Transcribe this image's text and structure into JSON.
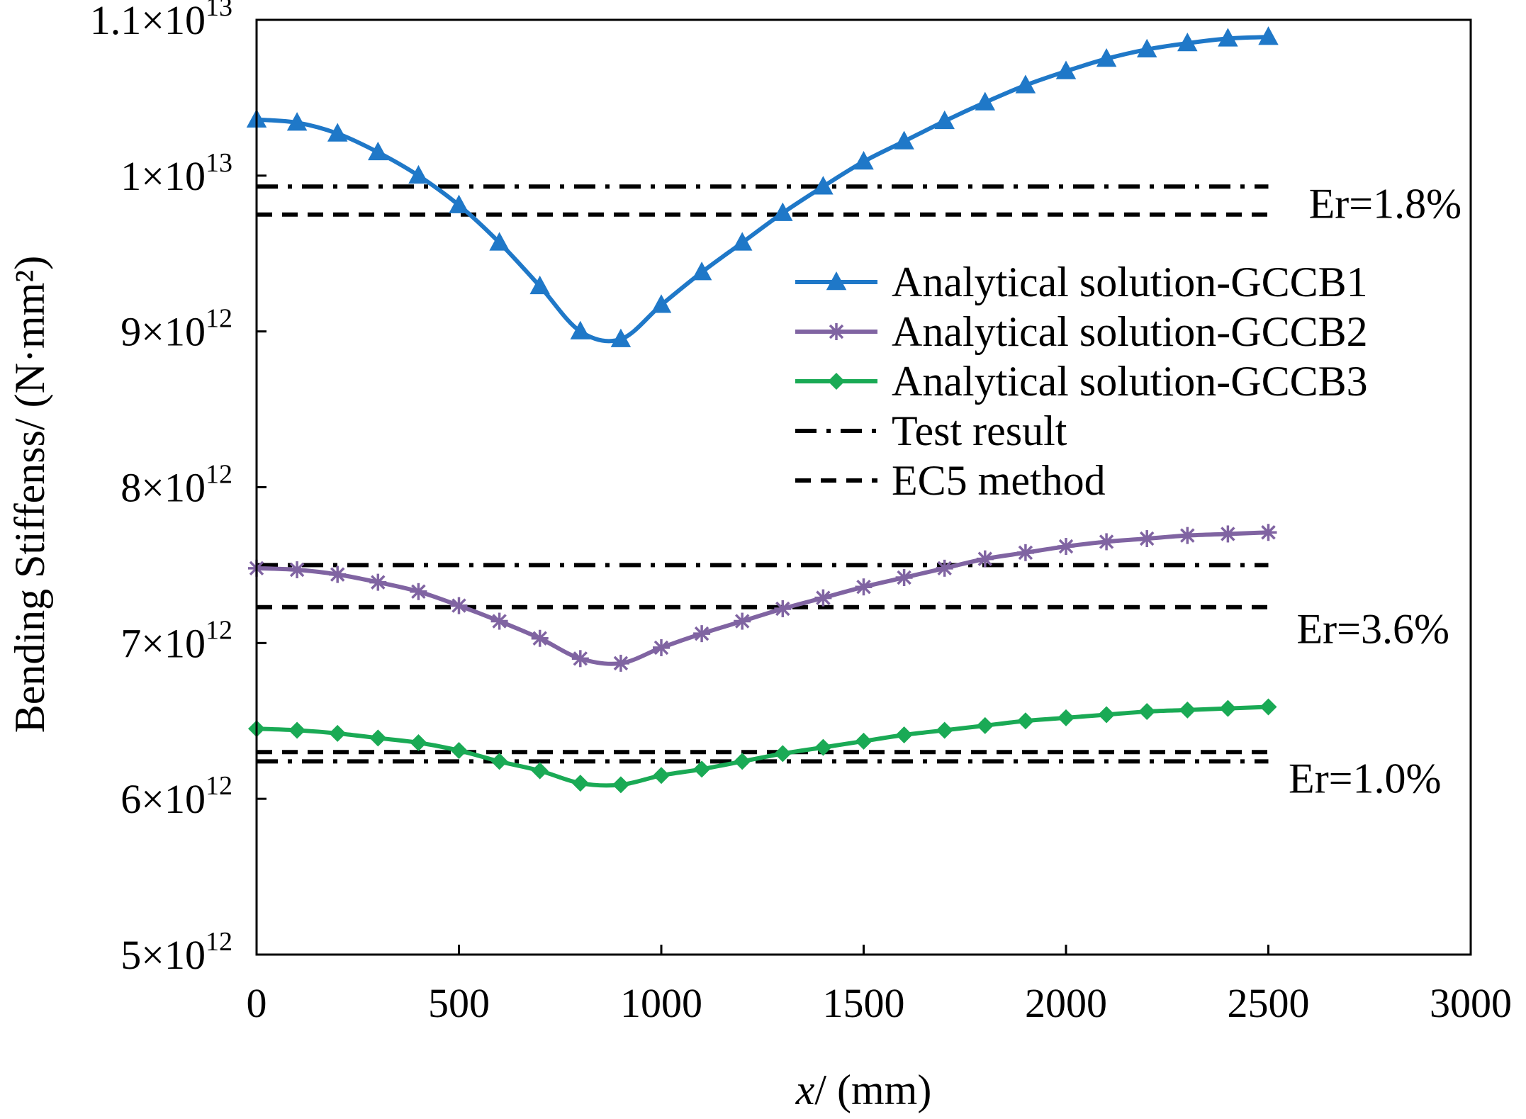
{
  "chart_data": {
    "type": "line",
    "xlabel": {
      "var": "x",
      "rest": "/ (mm)"
    },
    "ylabel": "Bending Stiffenss/ (N·mm²)",
    "xlim": [
      0,
      3000
    ],
    "ylim": [
      5000000000000.0,
      11000000000000.0
    ],
    "x_ticks": [
      {
        "value": 0,
        "label": "0"
      },
      {
        "value": 500,
        "label": "500"
      },
      {
        "value": 1000,
        "label": "1000"
      },
      {
        "value": 1500,
        "label": "1500"
      },
      {
        "value": 2000,
        "label": "2000"
      },
      {
        "value": 2500,
        "label": "2500"
      },
      {
        "value": 3000,
        "label": "3000"
      }
    ],
    "y_ticks": [
      {
        "value": 5000000000000.0,
        "mantissa": "5×10",
        "exponent": "12"
      },
      {
        "value": 6000000000000.0,
        "mantissa": "6×10",
        "exponent": "12"
      },
      {
        "value": 7000000000000.0,
        "mantissa": "7×10",
        "exponent": "12"
      },
      {
        "value": 8000000000000.0,
        "mantissa": "8×10",
        "exponent": "12"
      },
      {
        "value": 9000000000000.0,
        "mantissa": "9×10",
        "exponent": "12"
      },
      {
        "value": 10000000000000.0,
        "mantissa": "1×10",
        "exponent": "13"
      },
      {
        "value": 11000000000000.0,
        "mantissa": "1.1×10",
        "exponent": "13"
      }
    ],
    "x": [
      0,
      100,
      200,
      300,
      400,
      500,
      600,
      700,
      800,
      900,
      1000,
      1100,
      1200,
      1300,
      1400,
      1500,
      1600,
      1700,
      1800,
      1900,
      2000,
      2100,
      2200,
      2300,
      2400,
      2500
    ],
    "series": [
      {
        "name": "Analytical solution-GCCB1",
        "color": "#1f78c8",
        "marker": "triangle",
        "values": [
          10360000000000.0,
          10340000000000.0,
          10270000000000.0,
          10150000000000.0,
          10000000000000.0,
          9810000000000.0,
          9570000000000.0,
          9290000000000.0,
          9000000000000.0,
          8950000000000.0,
          9170000000000.0,
          9380000000000.0,
          9570000000000.0,
          9760000000000.0,
          9930000000000.0,
          10090000000000.0,
          10220000000000.0,
          10350000000000.0,
          10470000000000.0,
          10580000000000.0,
          10670000000000.0,
          10750000000000.0,
          10810000000000.0,
          10850000000000.0,
          10880000000000.0,
          10890000000000.0
        ]
      },
      {
        "name": "Analytical solution-GCCB2",
        "color": "#8064a2",
        "marker": "asterisk",
        "values": [
          7480000000000.0,
          7470000000000.0,
          7440000000000.0,
          7390000000000.0,
          7330000000000.0,
          7240000000000.0,
          7140000000000.0,
          7030000000000.0,
          6900000000000.0,
          6870000000000.0,
          6970000000000.0,
          7060000000000.0,
          7140000000000.0,
          7220000000000.0,
          7290000000000.0,
          7360000000000.0,
          7420000000000.0,
          7480000000000.0,
          7540000000000.0,
          7580000000000.0,
          7620000000000.0,
          7650000000000.0,
          7670000000000.0,
          7690000000000.0,
          7700000000000.0,
          7710000000000.0
        ]
      },
      {
        "name": "Analytical solution-GCCB3",
        "color": "#1aaa55",
        "marker": "diamond",
        "values": [
          6450000000000.0,
          6440000000000.0,
          6420000000000.0,
          6390000000000.0,
          6360000000000.0,
          6310000000000.0,
          6240000000000.0,
          6180000000000.0,
          6100000000000.0,
          6090000000000.0,
          6150000000000.0,
          6190000000000.0,
          6240000000000.0,
          6290000000000.0,
          6330000000000.0,
          6370000000000.0,
          6410000000000.0,
          6440000000000.0,
          6470000000000.0,
          6500000000000.0,
          6520000000000.0,
          6540000000000.0,
          6560000000000.0,
          6570000000000.0,
          6580000000000.0,
          6590000000000.0
        ]
      }
    ],
    "reference_lines": [
      {
        "name": "Test result",
        "style": "dash-dot",
        "group": "GCCB1",
        "value": 9930000000000.0
      },
      {
        "name": "EC5 method",
        "style": "dashed",
        "group": "GCCB1",
        "value": 9750000000000.0
      },
      {
        "name": "Test result",
        "style": "dash-dot",
        "group": "GCCB2",
        "value": 7500000000000.0
      },
      {
        "name": "EC5 method",
        "style": "dashed",
        "group": "GCCB2",
        "value": 7230000000000.0
      },
      {
        "name": "Test result",
        "style": "dash-dot",
        "group": "GCCB3",
        "value": 6240000000000.0
      },
      {
        "name": "EC5 method",
        "style": "dashed",
        "group": "GCCB3",
        "value": 6300000000000.0
      }
    ],
    "reference_x_range": [
      0,
      2500
    ],
    "annotations": [
      {
        "text": "Er=1.8%",
        "x": 2600,
        "y": 9820000000000.0
      },
      {
        "text": "Er=3.6%",
        "x": 2570,
        "y": 7090000000000.0
      },
      {
        "text": "Er=1.0%",
        "x": 2550,
        "y": 6130000000000.0
      }
    ],
    "legend": {
      "position": "top-right",
      "entries": [
        {
          "label": "Analytical solution-GCCB1",
          "kind": "series",
          "color": "#1f78c8",
          "marker": "triangle"
        },
        {
          "label": "Analytical solution-GCCB2",
          "kind": "series",
          "color": "#8064a2",
          "marker": "asterisk"
        },
        {
          "label": "Analytical solution-GCCB3",
          "kind": "series",
          "color": "#1aaa55",
          "marker": "diamond"
        },
        {
          "label": "Test result",
          "kind": "line",
          "style": "dash-dot",
          "color": "#000000"
        },
        {
          "label": "EC5 method",
          "kind": "line",
          "style": "dashed",
          "color": "#000000"
        }
      ]
    },
    "grid": false
  }
}
